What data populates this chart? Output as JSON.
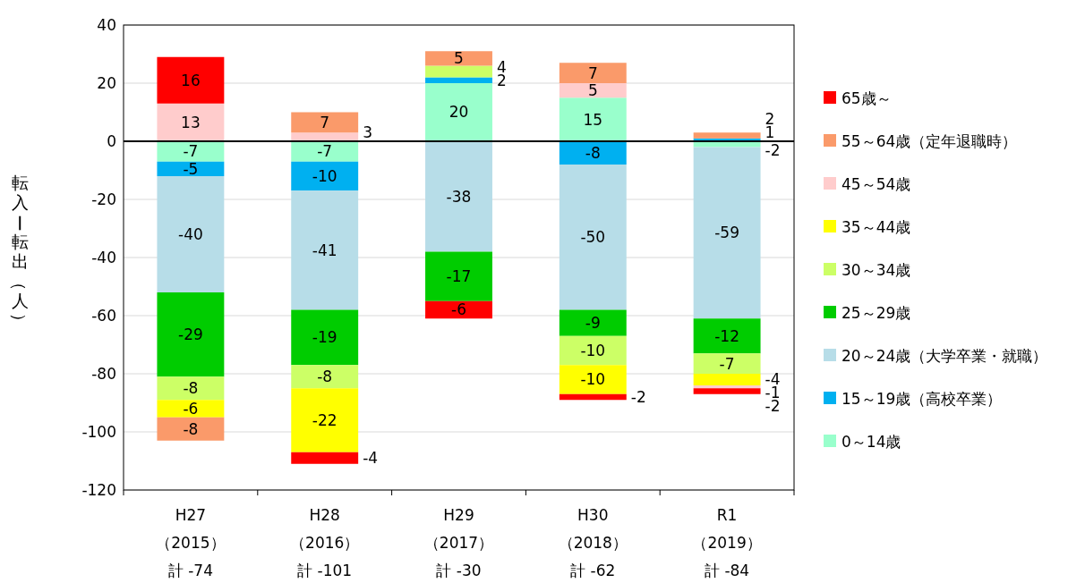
{
  "chart_data": {
    "type": "bar",
    "stacked": true,
    "ylabel": "転入ー転出（人）",
    "categories": [
      "H27（2015）計 -74",
      "H28（2016）計 -101",
      "H29（2017）計 -30",
      "H30（2018）計 -62",
      "R1（2019）計 -84"
    ],
    "series": [
      {
        "name": "0～14歳",
        "color": "#99ffcc",
        "values": [
          -7,
          -7,
          20,
          15,
          -2
        ]
      },
      {
        "name": "15～19歳（高校卒業）",
        "color": "#00b0f0",
        "values": [
          -5,
          -10,
          2,
          -8,
          1
        ]
      },
      {
        "name": "20～24歳（大学卒業・就職）",
        "color": "#b7dde8",
        "values": [
          -40,
          -41,
          -38,
          -50,
          -59
        ]
      },
      {
        "name": "25～29歳",
        "color": "#00cc00",
        "values": [
          -29,
          -19,
          -17,
          -9,
          -12
        ]
      },
      {
        "name": "30～34歳",
        "color": "#ccff66",
        "values": [
          -8,
          -8,
          4,
          -10,
          -7
        ]
      },
      {
        "name": "35～44歳",
        "color": "#ffff00",
        "values": [
          -6,
          -22,
          null,
          -10,
          -4
        ]
      },
      {
        "name": "45～54歳",
        "color": "#ffcccc",
        "values": [
          13,
          3,
          null,
          5,
          -1
        ]
      },
      {
        "name": "55～64歳（定年退職時）",
        "color": "#fa9a6a",
        "values": [
          -8,
          7,
          5,
          7,
          2
        ]
      },
      {
        "name": "65歳～",
        "color": "#ff0000",
        "values": [
          16,
          -4,
          -6,
          -2,
          -2
        ]
      }
    ],
    "ylim": [
      -120,
      40
    ],
    "yticks": [
      -120,
      -100,
      -80,
      -60,
      -40,
      -20,
      0,
      20,
      40
    ],
    "grid": "y",
    "legend": "right",
    "data_labels": true,
    "ref_lines": [
      {
        "axis": "y",
        "value": 0,
        "color": "#000000"
      }
    ]
  }
}
